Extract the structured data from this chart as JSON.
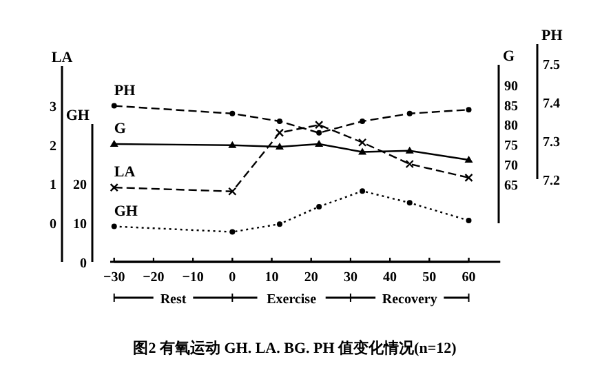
{
  "chart_data": [
    {
      "type": "line",
      "annotations": [
        "图2 有氧运动 GH. LA. BG. PH 值变化情况(n=12)",
        "Rest",
        "Exercise",
        "Recovery"
      ],
      "x": [
        -30,
        0,
        12,
        22,
        33,
        45,
        60
      ],
      "xlim": [
        -31,
        68
      ],
      "xticks": [
        -30,
        -20,
        -10,
        0,
        10,
        20,
        30,
        40,
        50,
        60
      ],
      "ylabel": "LA",
      "ylim": [
        -1,
        4
      ],
      "yticks": [
        0,
        1,
        2,
        3
      ],
      "y2label": "GH",
      "y2lim": [
        0,
        35
      ],
      "y2ticks": [
        0,
        10,
        20
      ],
      "y3label": "G",
      "y3lim": [
        55,
        95
      ],
      "y3ticks": [
        65,
        70,
        75,
        80,
        85,
        90
      ],
      "legend": false,
      "grid": false,
      "series": [
        {
          "name": "G",
          "axis": "y3",
          "color": "#000000",
          "marker": "triangle",
          "line_style": "solid",
          "values": [
            75,
            74.7,
            74.3,
            75,
            73,
            73.3,
            71
          ]
        },
        {
          "name": "LA",
          "color": "#000000",
          "marker": "cross",
          "line_style": "dashed",
          "values": [
            0.9,
            0.8,
            2.3,
            2.5,
            2.05,
            1.5,
            1.15
          ]
        },
        {
          "name": "GH",
          "axis": "y2",
          "color": "#000000",
          "marker": "circle",
          "line_style": "dotted",
          "values": [
            9,
            7.6,
            9.6,
            14,
            18,
            15,
            10.5
          ]
        }
      ]
    },
    {
      "type": "line",
      "x": [
        -30,
        0,
        12,
        22,
        33,
        45,
        60
      ],
      "xlim": [
        -30,
        60
      ],
      "xticks": [
        -30,
        -20,
        -10,
        0,
        10,
        20,
        30,
        40,
        50,
        60
      ],
      "tick_labels": "y",
      "ylabel": "PH",
      "ylim": [
        7.2,
        7.55
      ],
      "yticks": [
        7.2,
        7.3,
        7.4,
        7.5
      ],
      "legend": false,
      "grid": false,
      "series": [
        {
          "name": "PH",
          "color": "#000000",
          "marker": "circle",
          "line_style": "dashed",
          "values": [
            7.39,
            7.37,
            7.35,
            7.32,
            7.35,
            7.37,
            7.38
          ]
        }
      ]
    }
  ]
}
